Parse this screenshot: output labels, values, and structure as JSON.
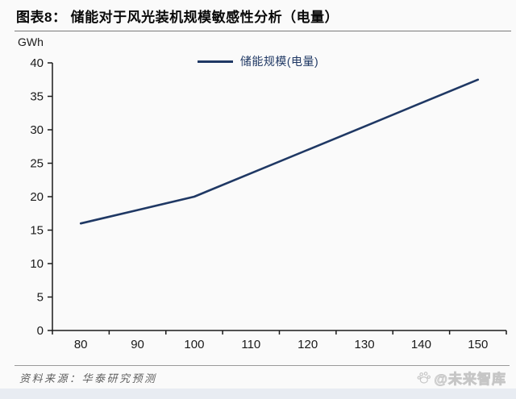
{
  "figure": {
    "title": "图表8： 储能对于风光装机规模敏感性分析（电量）",
    "unit_label": "GWh",
    "legend_label": "储能规模(电量)",
    "source_note": "资料来源：华泰研究预测",
    "watermark_text": "@未来智库",
    "watermark_icon": "paw-icon"
  },
  "colors": {
    "bg": "#fafafa",
    "line": "#1f3864",
    "axis": "#1a1a1a",
    "tick_label": "#1a1a1a",
    "underline": "#7a7a7a",
    "divider": "#9a9a9a",
    "source": "#5f5f5f",
    "watermark": "#c6c6c6",
    "strip": "#e8ecf2"
  },
  "chart_data": {
    "type": "line",
    "title": "储能对于风光装机规模敏感性分析（电量）",
    "categories": [
      80,
      90,
      100,
      110,
      120,
      130,
      140,
      150
    ],
    "series": [
      {
        "name": "储能规模(电量)",
        "values": [
          16,
          18,
          20,
          23.5,
          27,
          30.5,
          34,
          37.5
        ]
      }
    ],
    "xlabel": "",
    "ylabel": "GWh",
    "ylim": [
      0,
      40
    ],
    "ytick_step": 5,
    "grid": false,
    "legend_position": "top-center",
    "tick_style": "category-boundaries-with-centered-labels"
  }
}
